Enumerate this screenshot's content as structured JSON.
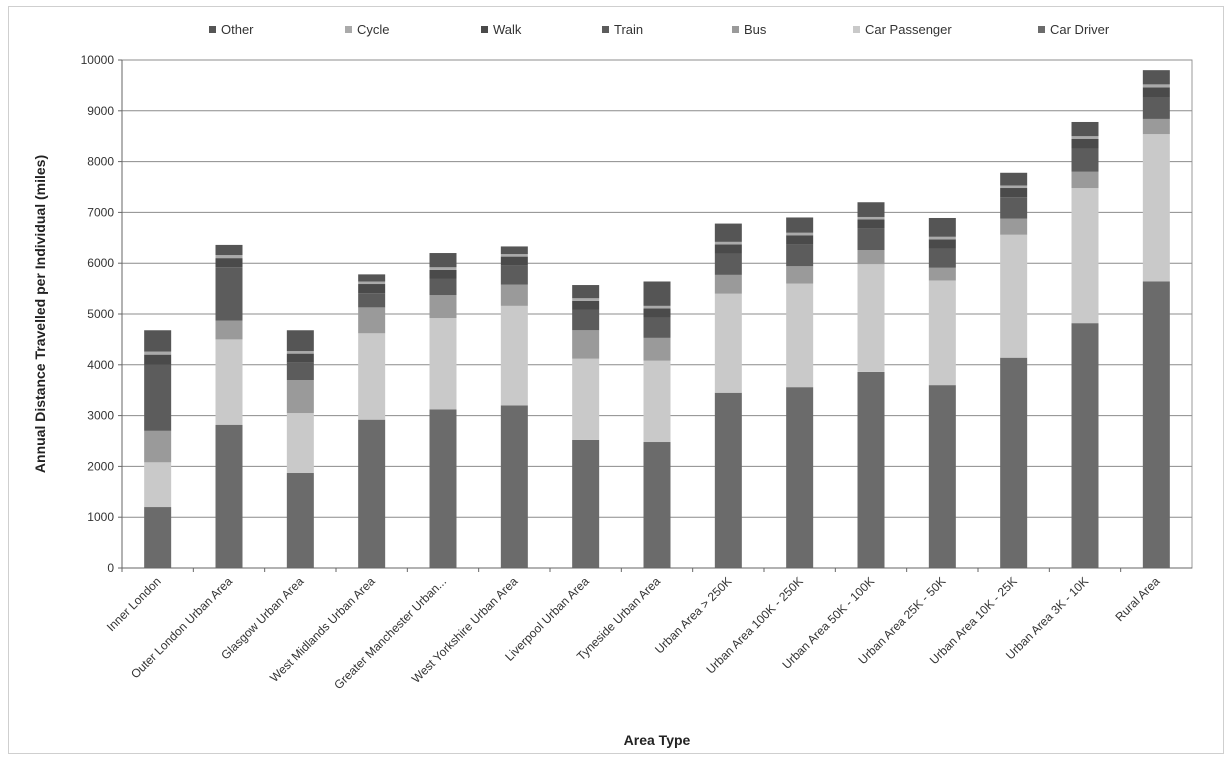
{
  "chart_data": {
    "type": "bar",
    "stacked": true,
    "title": "",
    "xlabel": "Area Type",
    "ylabel": "Annual Distance Travelled per Individual (miles)",
    "ylim": [
      0,
      10000
    ],
    "yticks": [
      0,
      1000,
      2000,
      3000,
      4000,
      5000,
      6000,
      7000,
      8000,
      9000,
      10000
    ],
    "grid": true,
    "legend_position": "top",
    "categories": [
      "Inner London",
      "Outer London Urban Area",
      "Glasgow Urban Area",
      "West Midlands Urban Area",
      "Greater Manchester Urban...",
      "West Yorkshire Urban Area",
      "Liverpool Urban Area",
      "Tyneside Urban Area",
      "Urban Area > 250K",
      "Urban Area 100K - 250K",
      "Urban Area 50K - 100K",
      "Urban Area 25K - 50K",
      "Urban Area 10K - 25K",
      "Urban Area 3K - 10K",
      "Rural Area"
    ],
    "series": [
      {
        "name": "Car Driver",
        "color": "#6b6b6b",
        "values": [
          1200,
          2820,
          1870,
          2920,
          3120,
          3200,
          2520,
          2480,
          3450,
          3560,
          3860,
          3600,
          4140,
          4820,
          5640
        ]
      },
      {
        "name": "Car Passenger",
        "color": "#c9c9c9",
        "values": [
          880,
          1680,
          1180,
          1700,
          1800,
          1960,
          1600,
          1600,
          1950,
          2040,
          2120,
          2060,
          2420,
          2660,
          2900
        ]
      },
      {
        "name": "Bus",
        "color": "#9a9a9a",
        "values": [
          620,
          370,
          650,
          510,
          450,
          420,
          560,
          450,
          370,
          340,
          280,
          250,
          320,
          320,
          300
        ]
      },
      {
        "name": "Train",
        "color": "#5c5c5c",
        "values": [
          1300,
          1050,
          340,
          280,
          320,
          370,
          400,
          400,
          420,
          430,
          420,
          380,
          420,
          450,
          420
        ]
      },
      {
        "name": "Walk",
        "color": "#4a4a4a",
        "values": [
          200,
          180,
          180,
          180,
          180,
          180,
          180,
          180,
          180,
          180,
          180,
          180,
          180,
          200,
          200
        ]
      },
      {
        "name": "Cycle",
        "color": "#aaaaaa",
        "values": [
          60,
          60,
          50,
          50,
          50,
          50,
          50,
          50,
          50,
          50,
          50,
          50,
          50,
          50,
          60
        ]
      },
      {
        "name": "Other",
        "color": "#555555",
        "values": [
          420,
          200,
          410,
          140,
          280,
          150,
          260,
          480,
          360,
          300,
          290,
          370,
          250,
          280,
          280
        ]
      }
    ]
  }
}
